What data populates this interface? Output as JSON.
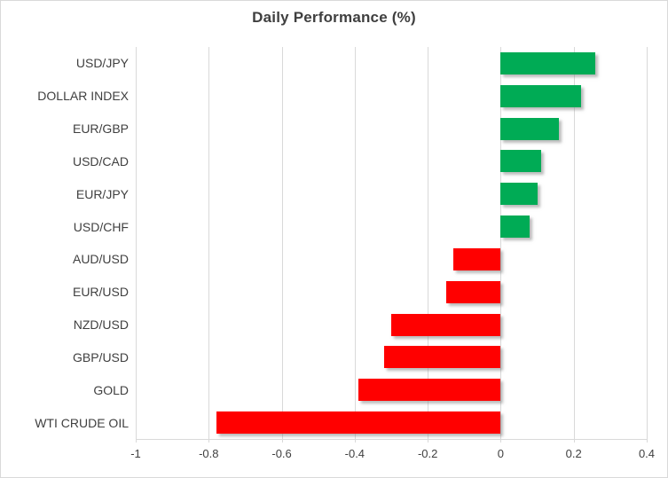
{
  "title": "Daily Performance (%)",
  "chart_data": {
    "type": "bar",
    "orientation": "horizontal",
    "title": "Daily Performance (%)",
    "xlabel": "",
    "ylabel": "",
    "categories": [
      "USD/JPY",
      "DOLLAR INDEX",
      "EUR/GBP",
      "USD/CAD",
      "EUR/JPY",
      "USD/CHF",
      "AUD/USD",
      "EUR/USD",
      "NZD/USD",
      "GBP/USD",
      "GOLD",
      "WTI CRUDE OIL"
    ],
    "values": [
      0.26,
      0.22,
      0.16,
      0.11,
      0.1,
      0.08,
      -0.13,
      -0.15,
      -0.3,
      -0.32,
      -0.39,
      -0.78
    ],
    "xlim": [
      -1,
      0.4
    ],
    "xticks": [
      -1,
      -0.8,
      -0.6,
      -0.4,
      -0.2,
      0,
      0.2,
      0.4
    ],
    "xtick_labels": [
      "-1",
      "-0.8",
      "-0.6",
      "-0.4",
      "-0.2",
      "0",
      "0.2",
      "0.4"
    ],
    "grid": true,
    "legend": "none",
    "colors": {
      "positive": "#00AB55",
      "negative": "#FF0000",
      "gridline": "#D9D9D9",
      "text": "#404040",
      "title_text": "#3F3F3F",
      "background": "#FFFFFF"
    }
  }
}
